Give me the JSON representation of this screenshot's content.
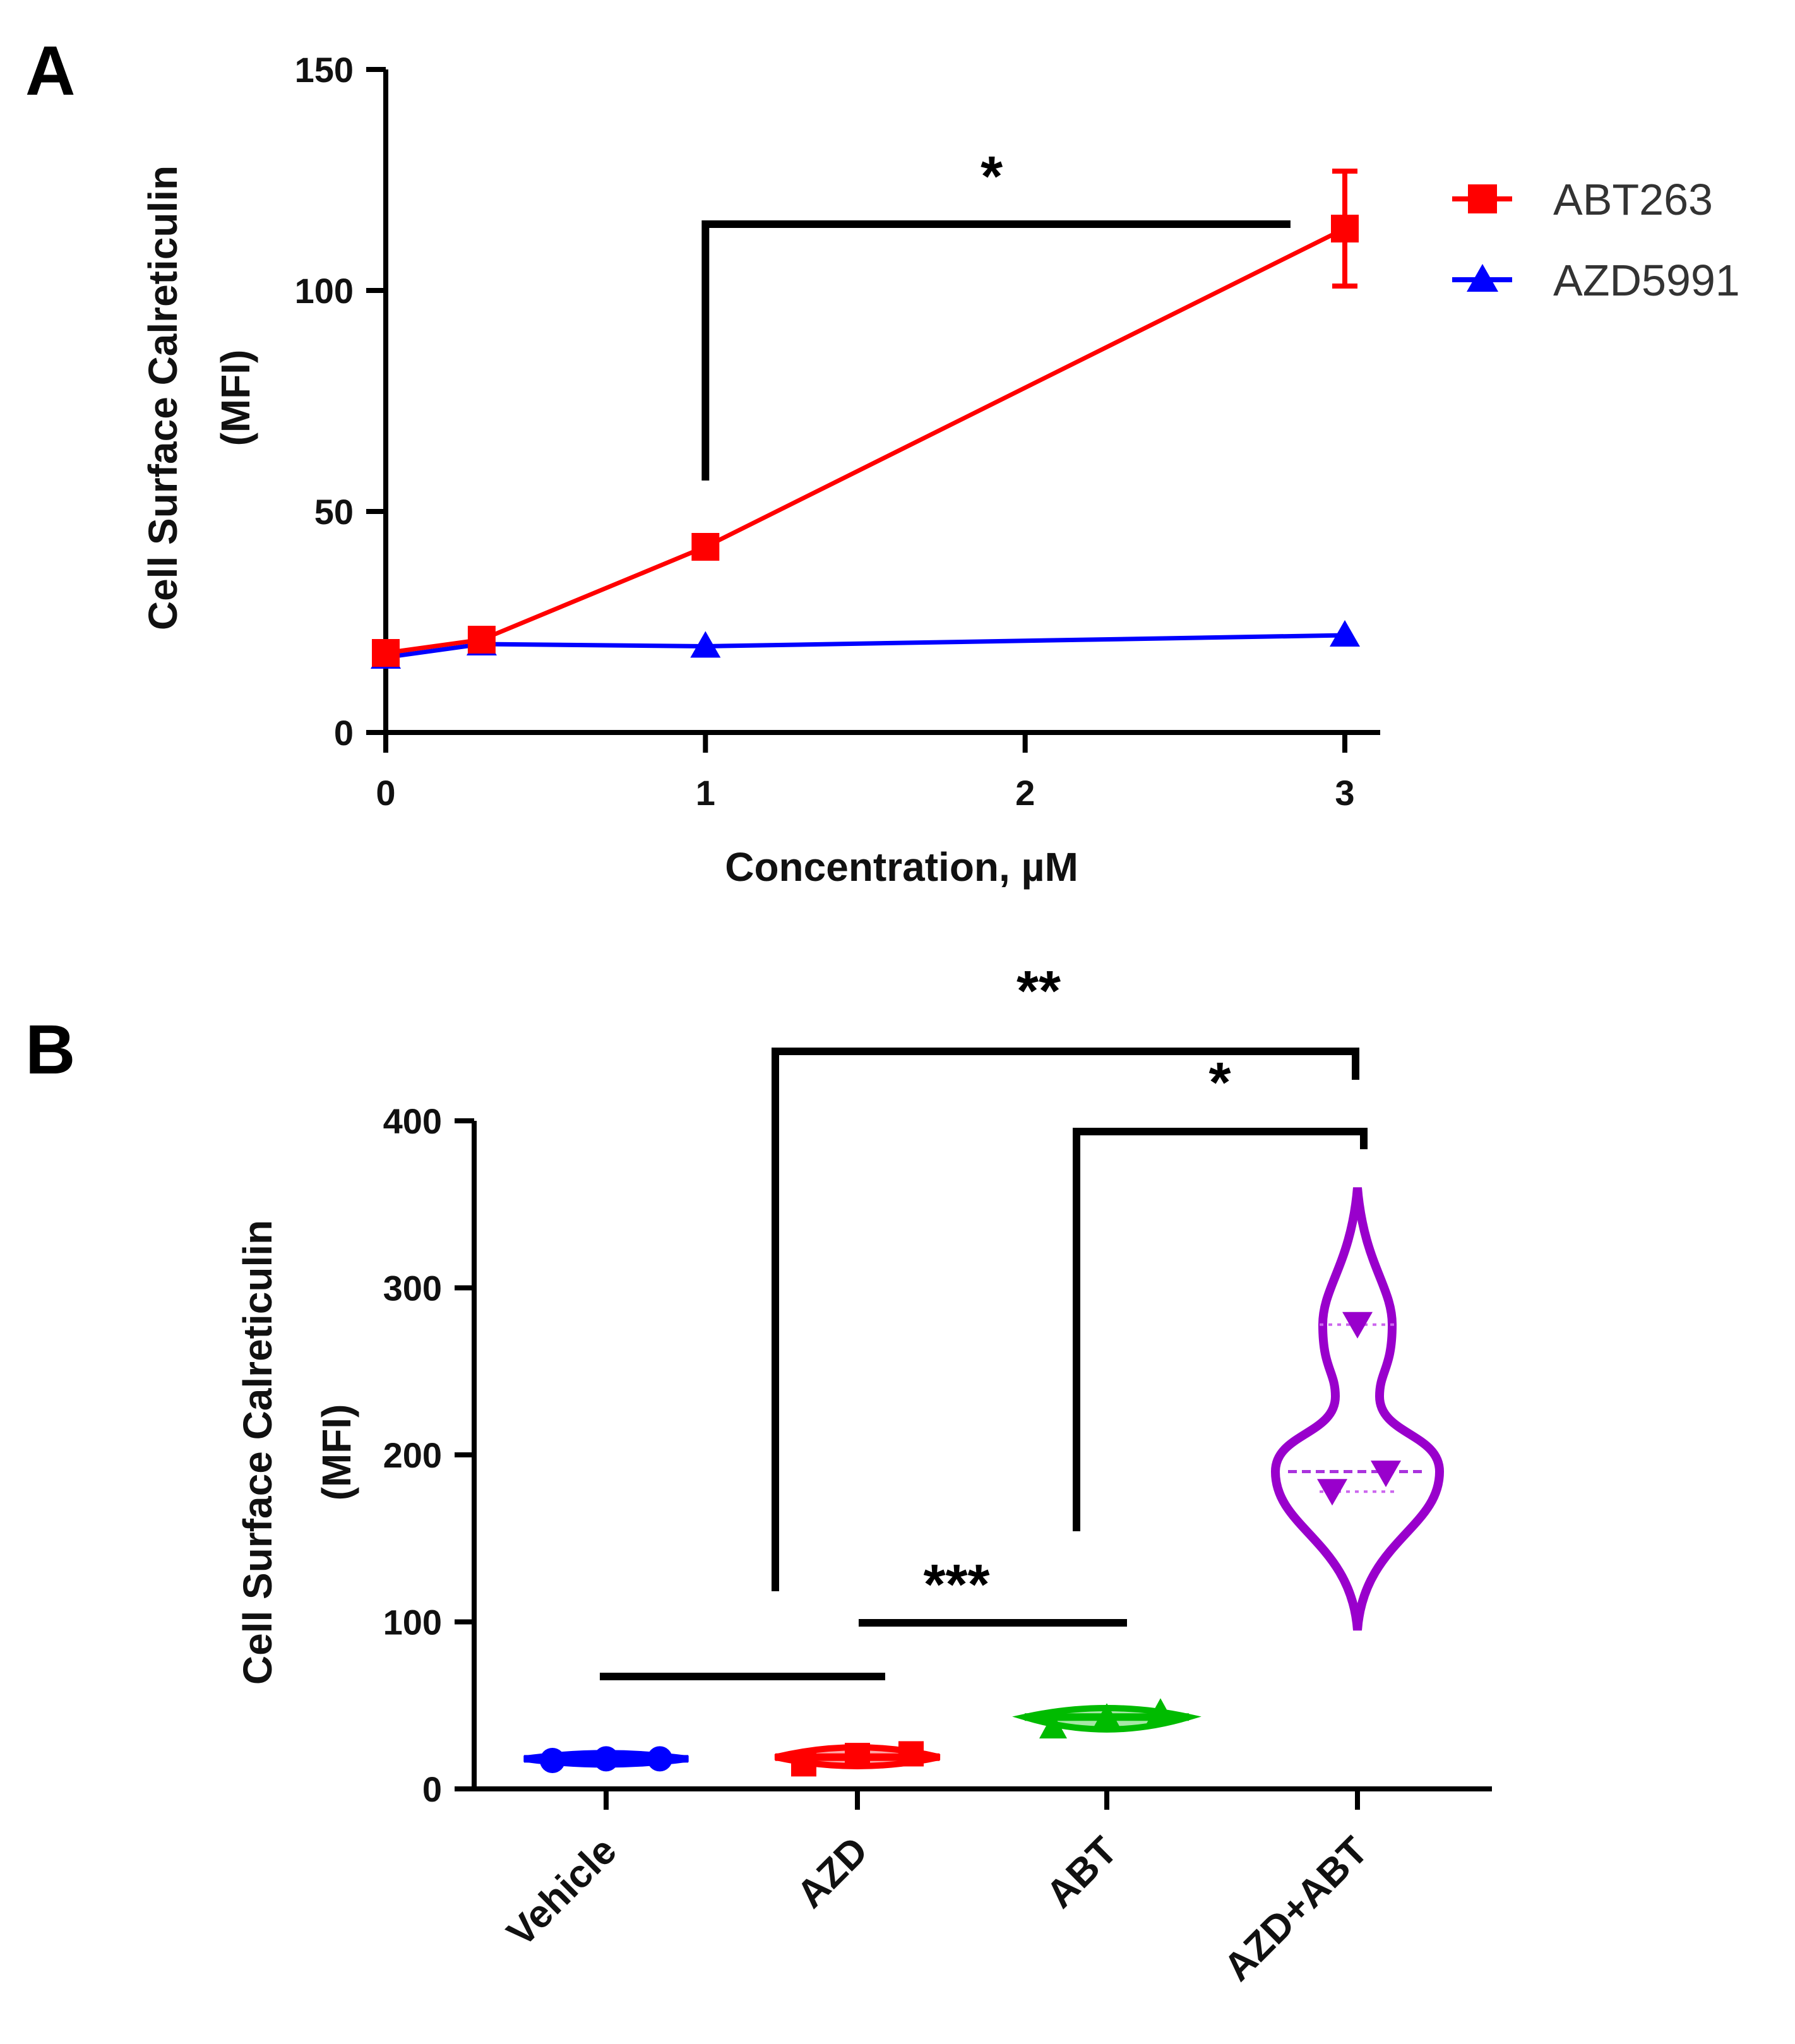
{
  "chart_data": [
    {
      "panel": "A",
      "type": "line",
      "xlabel": "Concentration, µM",
      "ylabel_line1": "Cell Surface Calreticulin",
      "ylabel_line2": "(MFI)",
      "xlim": [
        0,
        3
      ],
      "ylim": [
        0,
        150
      ],
      "xticks": [
        "0",
        "1",
        "2",
        "3"
      ],
      "yticks": [
        "0",
        "50",
        "100",
        "150"
      ],
      "series": [
        {
          "name": "ABT263",
          "color": "#ff0000",
          "marker": "square",
          "x": [
            0,
            0.3,
            1,
            3
          ],
          "y": [
            18,
            21,
            42,
            114
          ],
          "error": [
            1.5,
            1.5,
            2,
            13
          ]
        },
        {
          "name": "AZD5991",
          "color": "#0000ff",
          "marker": "triangle",
          "x": [
            0,
            0.3,
            1,
            3
          ],
          "y": [
            17,
            20,
            19.5,
            22
          ],
          "error": [
            1,
            1,
            1,
            1
          ]
        }
      ],
      "significance": [
        {
          "label": "*",
          "from_x": 1,
          "to_x": 2.83,
          "y": 115,
          "left_drop_to": 57
        }
      ]
    },
    {
      "panel": "B",
      "type": "violin",
      "ylabel_line1": "Cell Surface Calreticulin",
      "ylabel_line2": "(MFI)",
      "ylim": [
        0,
        400
      ],
      "yticks": [
        "0",
        "100",
        "200",
        "300",
        "400"
      ],
      "categories": [
        "Vehicle",
        "AZD",
        "ABT",
        "AZD+ABT"
      ],
      "groups": [
        {
          "name": "Vehicle",
          "color": "#0000ff",
          "marker": "circle",
          "points": [
            17,
            18,
            18
          ],
          "median": 18,
          "min": 15,
          "max": 21
        },
        {
          "name": "AZD",
          "color": "#ff0000",
          "marker": "square",
          "points": [
            15,
            20,
            21
          ],
          "median": 19,
          "min": 12,
          "max": 27
        },
        {
          "name": "ABT",
          "color": "#00bb00",
          "marker": "triangle",
          "points": [
            37,
            43,
            46
          ],
          "median": 43,
          "min": 32,
          "max": 50
        },
        {
          "name": "AZD+ABT",
          "color": "#9900cc",
          "marker": "triangle-down",
          "points": [
            178,
            189,
            278
          ],
          "median": 190,
          "q1": 178,
          "q3": 278,
          "min": 95,
          "max": 360
        }
      ],
      "significance": [
        {
          "label": "**",
          "from": "Vehicle-AZD midpoint",
          "to": "AZD+ABT"
        },
        {
          "label": "*",
          "from": "ABT",
          "to": "AZD+ABT"
        },
        {
          "label": "***",
          "from": "AZD",
          "to": "ABT"
        }
      ]
    }
  ],
  "labels": {
    "panel_a": "A",
    "panel_b": "B",
    "sig_a": "*",
    "sig_b_double": "**",
    "sig_b_single": "*",
    "sig_b_triple": "***"
  }
}
